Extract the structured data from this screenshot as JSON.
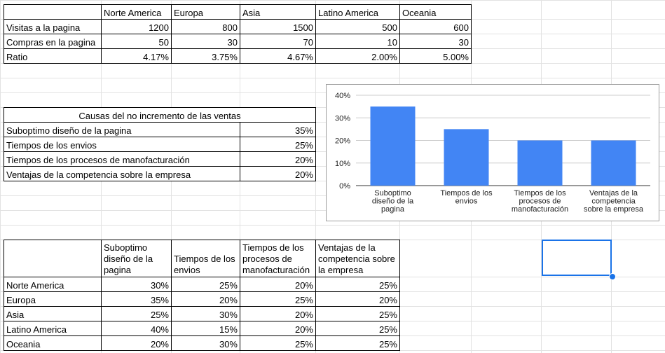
{
  "table1": {
    "columns": [
      "Norte America",
      "Europa",
      "Asia",
      "Latino America",
      "Oceania"
    ],
    "rows": [
      {
        "label": "Visitas a la pagina",
        "values": [
          "1200",
          "800",
          "1500",
          "500",
          "600"
        ]
      },
      {
        "label": "Compras en la pagina",
        "values": [
          "50",
          "30",
          "70",
          "10",
          "30"
        ]
      },
      {
        "label": "Ratio",
        "values": [
          "4.17%",
          "3.75%",
          "4.67%",
          "2.00%",
          "5.00%"
        ]
      }
    ]
  },
  "table2": {
    "header": "Causas del no incremento de las ventas",
    "rows": [
      {
        "label": "Suboptimo diseño de la pagina",
        "value": "35%"
      },
      {
        "label": "Tiempos de los envios",
        "value": "25%"
      },
      {
        "label": "Tiempos de los procesos de manofacturación",
        "value": "20%"
      },
      {
        "label": "Ventajas de la competencia sobre la empresa",
        "value": "20%"
      }
    ]
  },
  "table3": {
    "columns": [
      "Suboptimo diseño de la pagina",
      "Tiempos de los envios",
      "Tiempos de los procesos de manofacturación",
      "Ventajas de la competencia sobre la empresa"
    ],
    "rows": [
      {
        "label": "Norte America",
        "values": [
          "30%",
          "25%",
          "20%",
          "25%"
        ]
      },
      {
        "label": "Europa",
        "values": [
          "35%",
          "20%",
          "25%",
          "20%"
        ]
      },
      {
        "label": "Asia",
        "values": [
          "25%",
          "30%",
          "20%",
          "25%"
        ]
      },
      {
        "label": "Latino America",
        "values": [
          "40%",
          "15%",
          "20%",
          "25%"
        ]
      },
      {
        "label": "Oceania",
        "values": [
          "20%",
          "30%",
          "25%",
          "25%"
        ]
      }
    ]
  },
  "chart_data": {
    "type": "bar",
    "categories": [
      [
        "Suboptimo",
        "diseño de la",
        "pagina"
      ],
      [
        "Tiempos de los",
        "envios"
      ],
      [
        "Tiempos de los",
        "procesos de",
        "manofacturación"
      ],
      [
        "Ventajas de la",
        "competencia",
        "sobre la empresa"
      ]
    ],
    "values": [
      35,
      25,
      20,
      20
    ],
    "yticks": [
      "0%",
      "10%",
      "20%",
      "30%",
      "40%"
    ],
    "ylim": [
      0,
      40
    ],
    "grid": true,
    "legend": "none",
    "bar_color": "#4285f4"
  }
}
